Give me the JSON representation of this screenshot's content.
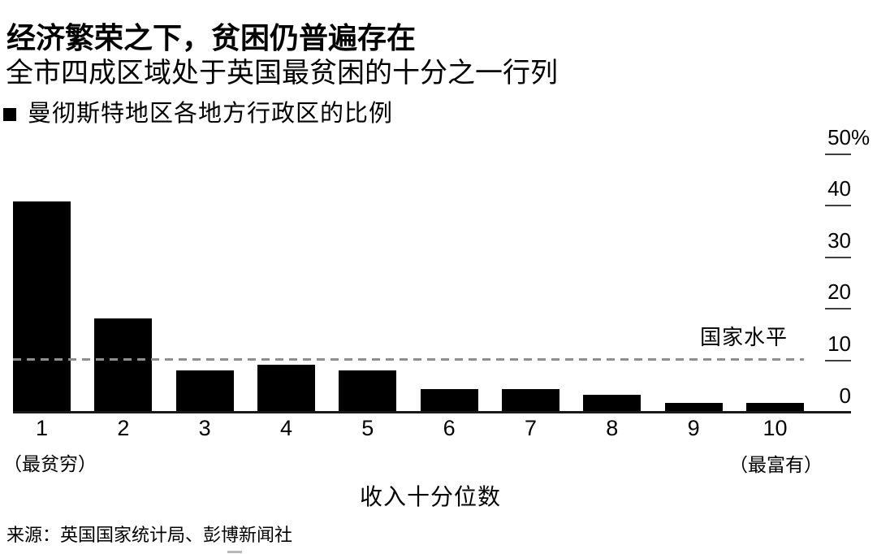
{
  "header": {
    "title": "经济繁荣之下，贫困仍普遍存在",
    "subtitle": "全市四成区域处于英国最贫困的十分之一行列"
  },
  "legend": {
    "marker": "black-square-icon",
    "marker_color": "#000000",
    "label": "曼彻斯特地区各地方行政区的比例"
  },
  "chart_data": {
    "type": "bar",
    "title": "经济繁荣之下，贫困仍普遍存在",
    "subtitle": "全市四成区域处于英国最贫困的十分之一行列",
    "series_label": "曼彻斯特地区各地方行政区的比例",
    "categories": [
      "1",
      "2",
      "3",
      "4",
      "5",
      "6",
      "7",
      "8",
      "9",
      "10"
    ],
    "values": [
      40.6,
      18,
      8,
      9,
      8,
      4.4,
      4.4,
      3.3,
      1.7,
      1.7
    ],
    "unit": "%",
    "bar_color": "#000000",
    "xlabel": "收入十分位数",
    "x_annotation_left": "（最贫穷）",
    "x_annotation_right": "（最富有）",
    "y_ticks": [
      0,
      10,
      20,
      30,
      40,
      50
    ],
    "y_tick_labels": [
      "0",
      "10",
      "20",
      "30",
      "40",
      "50%"
    ],
    "ylim": [
      0,
      52
    ],
    "y_axis_side": "right",
    "grid": false,
    "legend_position": "top-left",
    "reference_line": {
      "value": 10,
      "label": "国家水平",
      "style": "dashed",
      "color": "#000000"
    }
  },
  "footer": {
    "source": "来源：英国国家统计局、彭博新闻社"
  }
}
